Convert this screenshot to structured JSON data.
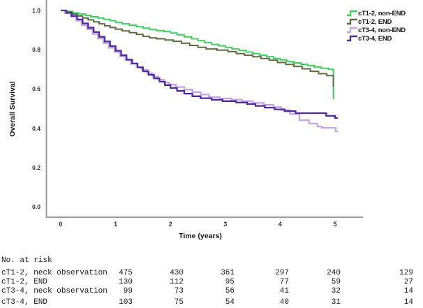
{
  "figure": {
    "y_axis_title": "Overall Survival",
    "x_axis_title": "Time (years)",
    "y_ticks": [
      "1.0",
      "0.8",
      "0.6",
      "0.4",
      "0.2",
      "0.0"
    ],
    "x_ticks": [
      "0",
      "1",
      "2",
      "3",
      "4",
      "5"
    ],
    "axis_color": "#9b9b9b"
  },
  "legend": {
    "items": [
      {
        "label": "cT1-2, non-END",
        "color": "#3fcf5f"
      },
      {
        "label": "cT1-2, END",
        "color": "#5f6b45"
      },
      {
        "label": "cT3-4, non-END",
        "color": "#c5a6e4"
      },
      {
        "label": "cT3-4, END",
        "color": "#4e2b9f"
      }
    ]
  },
  "chart_data": {
    "type": "line",
    "subtype": "kaplan-meier-step",
    "title": "",
    "xlabel": "Time (years)",
    "ylabel": "Overall Survival",
    "xlim": [
      0,
      5.5
    ],
    "ylim": [
      0,
      1.05
    ],
    "x_tick_values": [
      0,
      1,
      2,
      3,
      4,
      5
    ],
    "y_tick_values": [
      1.0,
      0.8,
      0.6,
      0.4,
      0.2,
      0.0
    ],
    "grid": false,
    "legend_position": "top-right",
    "series": [
      {
        "name": "cT1-2, non-END",
        "color": "#3fcf5f",
        "width": 2,
        "points": [
          [
            0,
            1.0
          ],
          [
            0.12,
            0.995
          ],
          [
            0.22,
            0.988
          ],
          [
            0.32,
            0.982
          ],
          [
            0.45,
            0.975
          ],
          [
            0.55,
            0.968
          ],
          [
            0.68,
            0.962
          ],
          [
            0.78,
            0.955
          ],
          [
            0.9,
            0.948
          ],
          [
            1.0,
            0.94
          ],
          [
            1.12,
            0.932
          ],
          [
            1.25,
            0.925
          ],
          [
            1.38,
            0.917
          ],
          [
            1.5,
            0.91
          ],
          [
            1.62,
            0.903
          ],
          [
            1.75,
            0.897
          ],
          [
            1.88,
            0.892
          ],
          [
            2.0,
            0.885
          ],
          [
            2.12,
            0.876
          ],
          [
            2.25,
            0.866
          ],
          [
            2.38,
            0.856
          ],
          [
            2.5,
            0.846
          ],
          [
            2.62,
            0.836
          ],
          [
            2.75,
            0.827
          ],
          [
            2.88,
            0.82
          ],
          [
            3.0,
            0.812
          ],
          [
            3.12,
            0.804
          ],
          [
            3.25,
            0.796
          ],
          [
            3.38,
            0.788
          ],
          [
            3.5,
            0.78
          ],
          [
            3.62,
            0.772
          ],
          [
            3.75,
            0.764
          ],
          [
            3.88,
            0.756
          ],
          [
            4.0,
            0.748
          ],
          [
            4.12,
            0.74
          ],
          [
            4.25,
            0.733
          ],
          [
            4.38,
            0.726
          ],
          [
            4.5,
            0.72
          ],
          [
            4.62,
            0.712
          ],
          [
            4.75,
            0.706
          ],
          [
            4.88,
            0.7
          ],
          [
            4.97,
            0.548
          ]
        ]
      },
      {
        "name": "cT1-2, END",
        "color": "#5f6b45",
        "width": 2,
        "points": [
          [
            0,
            1.0
          ],
          [
            0.1,
            0.992
          ],
          [
            0.2,
            0.982
          ],
          [
            0.3,
            0.972
          ],
          [
            0.4,
            0.962
          ],
          [
            0.5,
            0.952
          ],
          [
            0.6,
            0.942
          ],
          [
            0.7,
            0.932
          ],
          [
            0.8,
            0.922
          ],
          [
            0.9,
            0.913
          ],
          [
            1.0,
            0.905
          ],
          [
            1.12,
            0.896
          ],
          [
            1.25,
            0.887
          ],
          [
            1.38,
            0.878
          ],
          [
            1.5,
            0.868
          ],
          [
            1.62,
            0.86
          ],
          [
            1.75,
            0.856
          ],
          [
            1.9,
            0.85
          ],
          [
            2.05,
            0.843
          ],
          [
            2.2,
            0.833
          ],
          [
            2.35,
            0.822
          ],
          [
            2.5,
            0.812
          ],
          [
            2.65,
            0.804
          ],
          [
            2.85,
            0.798
          ],
          [
            3.05,
            0.79
          ],
          [
            3.2,
            0.78
          ],
          [
            3.35,
            0.772
          ],
          [
            3.5,
            0.764
          ],
          [
            3.65,
            0.755
          ],
          [
            3.8,
            0.747
          ],
          [
            3.95,
            0.735
          ],
          [
            4.1,
            0.725
          ],
          [
            4.25,
            0.715
          ],
          [
            4.4,
            0.703
          ],
          [
            4.55,
            0.69
          ],
          [
            4.7,
            0.678
          ],
          [
            4.85,
            0.668
          ],
          [
            4.97,
            0.612
          ]
        ]
      },
      {
        "name": "cT3-4, non-END",
        "color": "#c5a6e4",
        "width": 2.3,
        "points": [
          [
            0,
            1.0
          ],
          [
            0.08,
            0.986
          ],
          [
            0.18,
            0.968
          ],
          [
            0.28,
            0.948
          ],
          [
            0.38,
            0.926
          ],
          [
            0.48,
            0.904
          ],
          [
            0.58,
            0.88
          ],
          [
            0.68,
            0.857
          ],
          [
            0.78,
            0.833
          ],
          [
            0.88,
            0.81
          ],
          [
            0.98,
            0.788
          ],
          [
            1.08,
            0.766
          ],
          [
            1.18,
            0.746
          ],
          [
            1.28,
            0.728
          ],
          [
            1.38,
            0.712
          ],
          [
            1.48,
            0.697
          ],
          [
            1.58,
            0.68
          ],
          [
            1.68,
            0.663
          ],
          [
            1.78,
            0.647
          ],
          [
            1.88,
            0.633
          ],
          [
            1.98,
            0.622
          ],
          [
            2.1,
            0.61
          ],
          [
            2.25,
            0.597
          ],
          [
            2.4,
            0.584
          ],
          [
            2.55,
            0.572
          ],
          [
            2.7,
            0.558
          ],
          [
            2.9,
            0.552
          ],
          [
            3.1,
            0.546
          ],
          [
            3.3,
            0.538
          ],
          [
            3.5,
            0.529
          ],
          [
            3.7,
            0.519
          ],
          [
            3.88,
            0.508
          ],
          [
            4.02,
            0.492
          ],
          [
            4.18,
            0.472
          ],
          [
            4.35,
            0.441
          ],
          [
            4.53,
            0.424
          ],
          [
            4.68,
            0.409
          ],
          [
            4.76,
            0.402
          ],
          [
            5.01,
            0.384
          ],
          [
            5.05,
            0.384
          ]
        ]
      },
      {
        "name": "cT3-4, END",
        "color": "#4e2b9f",
        "width": 2.3,
        "points": [
          [
            0,
            1.0
          ],
          [
            0.1,
            0.988
          ],
          [
            0.2,
            0.972
          ],
          [
            0.3,
            0.954
          ],
          [
            0.4,
            0.934
          ],
          [
            0.5,
            0.912
          ],
          [
            0.6,
            0.89
          ],
          [
            0.7,
            0.866
          ],
          [
            0.8,
            0.842
          ],
          [
            0.9,
            0.818
          ],
          [
            1.0,
            0.795
          ],
          [
            1.1,
            0.772
          ],
          [
            1.2,
            0.75
          ],
          [
            1.3,
            0.73
          ],
          [
            1.4,
            0.71
          ],
          [
            1.5,
            0.69
          ],
          [
            1.6,
            0.672
          ],
          [
            1.7,
            0.654
          ],
          [
            1.8,
            0.637
          ],
          [
            1.9,
            0.62
          ],
          [
            2.0,
            0.605
          ],
          [
            2.12,
            0.59
          ],
          [
            2.25,
            0.576
          ],
          [
            2.4,
            0.563
          ],
          [
            2.55,
            0.553
          ],
          [
            2.75,
            0.545
          ],
          [
            2.95,
            0.538
          ],
          [
            3.2,
            0.531
          ],
          [
            3.4,
            0.523
          ],
          [
            3.55,
            0.514
          ],
          [
            3.72,
            0.505
          ],
          [
            3.9,
            0.496
          ],
          [
            4.08,
            0.487
          ],
          [
            4.28,
            0.477
          ],
          [
            4.84,
            0.463
          ],
          [
            5.0,
            0.452
          ],
          [
            5.05,
            0.452
          ]
        ]
      }
    ]
  },
  "risk_table": {
    "header": "No. at risk",
    "rows": [
      {
        "label": "cT1-2, neck observation",
        "values": [
          "475",
          "430",
          "361",
          "297",
          "240",
          "129"
        ]
      },
      {
        "label": "cT1-2, END",
        "values": [
          "130",
          "112",
          "95",
          "77",
          "59",
          "27"
        ]
      },
      {
        "label": "cT3-4, neck observation",
        "values": [
          "99",
          "73",
          "56",
          "41",
          "32",
          "14"
        ]
      },
      {
        "label": "cT3-4, END",
        "values": [
          "103",
          "75",
          "54",
          "40",
          "31",
          "14"
        ]
      }
    ]
  }
}
